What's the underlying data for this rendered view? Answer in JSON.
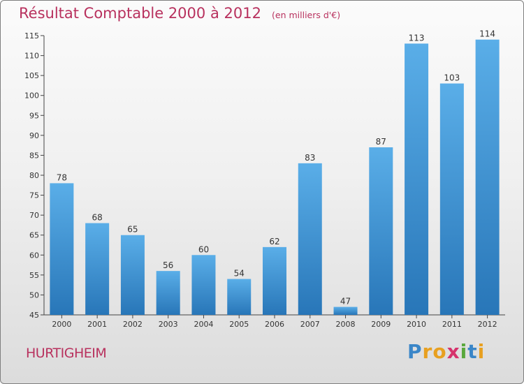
{
  "chart_data": {
    "type": "bar",
    "title": "Résultat Comptable 2000 à 2012",
    "unit_note": "(en milliers d'€)",
    "categories": [
      "2000",
      "2001",
      "2002",
      "2003",
      "2004",
      "2005",
      "2006",
      "2007",
      "2008",
      "2009",
      "2010",
      "2011",
      "2012"
    ],
    "values": [
      78,
      68,
      65,
      56,
      60,
      54,
      62,
      83,
      47,
      87,
      113,
      103,
      114
    ],
    "ylim": [
      45,
      115
    ],
    "yticks": [
      45,
      50,
      55,
      60,
      65,
      70,
      75,
      80,
      85,
      90,
      95,
      100,
      105,
      110,
      115
    ],
    "xlabel": "",
    "ylabel": "",
    "grid": false,
    "bar_color_top": "#5aaee8",
    "bar_color_bottom": "#2876b8"
  },
  "footer": {
    "commune": "HURTIGHEIM"
  },
  "brand": {
    "letters": [
      "P",
      "r",
      "o",
      "x",
      "i",
      "t",
      "i"
    ],
    "colors": [
      "#3a86c8",
      "#e8a020",
      "#e8a020",
      "#d6336c",
      "#5aa83c",
      "#3a86c8",
      "#e8a020"
    ]
  }
}
